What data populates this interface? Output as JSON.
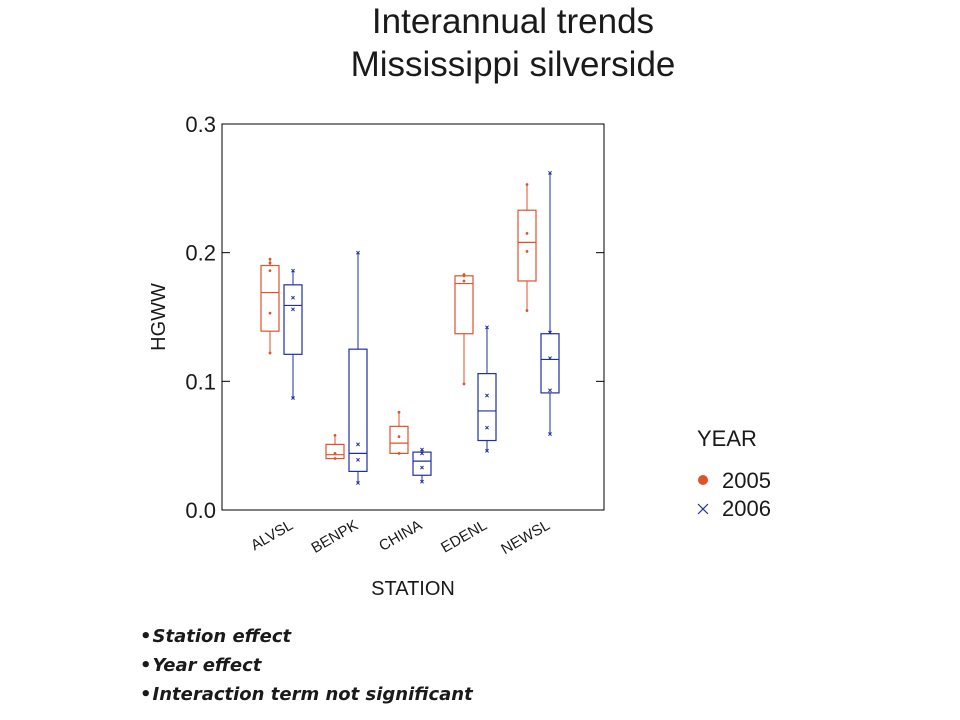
{
  "slide": {
    "title_line1": "Interannual trends",
    "title_line2": "Mississippi silverside",
    "bullets": [
      "Station effect",
      "Year effect",
      "Interaction term not significant"
    ]
  },
  "colors": {
    "2005": "#e0522a",
    "2006": "#1f2fa6",
    "axis": "#000000"
  },
  "chart_data": {
    "type": "box",
    "xlabel": "STATION",
    "ylabel": "HGWW",
    "ylim": [
      0,
      0.3
    ],
    "yticks": [
      0.0,
      0.1,
      0.2,
      0.3
    ],
    "ytick_labels": [
      "0.0",
      "0.1",
      "0.2",
      "0.3"
    ],
    "categories": [
      "ALVSL",
      "BENPK",
      "CHINA",
      "EDENL",
      "NEWSL"
    ],
    "legend": {
      "title": "YEAR",
      "position": "right"
    },
    "series": [
      {
        "name": "2005",
        "marker": "dot",
        "boxes": [
          {
            "station": "ALVSL",
            "min": 0.122,
            "q1": 0.139,
            "median": 0.169,
            "q3": 0.19,
            "max": 0.195,
            "points": [
              0.195,
              0.192,
              0.186,
              0.153,
              0.122
            ]
          },
          {
            "station": "BENPK",
            "min": 0.04,
            "q1": 0.04,
            "median": 0.043,
            "q3": 0.051,
            "max": 0.058,
            "points": [
              0.058,
              0.044,
              0.04
            ]
          },
          {
            "station": "CHINA",
            "min": 0.044,
            "q1": 0.044,
            "median": 0.052,
            "q3": 0.065,
            "max": 0.076,
            "points": [
              0.076,
              0.057,
              0.044
            ]
          },
          {
            "station": "EDENL",
            "min": 0.098,
            "q1": 0.137,
            "median": 0.176,
            "q3": 0.182,
            "max": 0.183,
            "points": [
              0.183,
              0.182,
              0.178,
              0.098
            ]
          },
          {
            "station": "NEWSL",
            "min": 0.155,
            "q1": 0.178,
            "median": 0.208,
            "q3": 0.233,
            "max": 0.253,
            "points": [
              0.253,
              0.215,
              0.201,
              0.155
            ]
          }
        ]
      },
      {
        "name": "2006",
        "marker": "x",
        "boxes": [
          {
            "station": "ALVSL",
            "min": 0.087,
            "q1": 0.121,
            "median": 0.159,
            "q3": 0.175,
            "max": 0.186,
            "points": [
              0.186,
              0.165,
              0.156,
              0.087
            ]
          },
          {
            "station": "BENPK",
            "min": 0.021,
            "q1": 0.03,
            "median": 0.044,
            "q3": 0.125,
            "max": 0.2,
            "points": [
              0.2,
              0.051,
              0.039,
              0.021
            ]
          },
          {
            "station": "CHINA",
            "min": 0.022,
            "q1": 0.027,
            "median": 0.038,
            "q3": 0.045,
            "max": 0.047,
            "points": [
              0.047,
              0.044,
              0.033,
              0.022
            ]
          },
          {
            "station": "EDENL",
            "min": 0.046,
            "q1": 0.054,
            "median": 0.077,
            "q3": 0.106,
            "max": 0.142,
            "points": [
              0.142,
              0.089,
              0.064,
              0.046
            ]
          },
          {
            "station": "NEWSL",
            "min": 0.059,
            "q1": 0.091,
            "median": 0.117,
            "q3": 0.137,
            "max": 0.262,
            "points": [
              0.262,
              0.138,
              0.118,
              0.093,
              0.059
            ]
          }
        ]
      }
    ]
  }
}
